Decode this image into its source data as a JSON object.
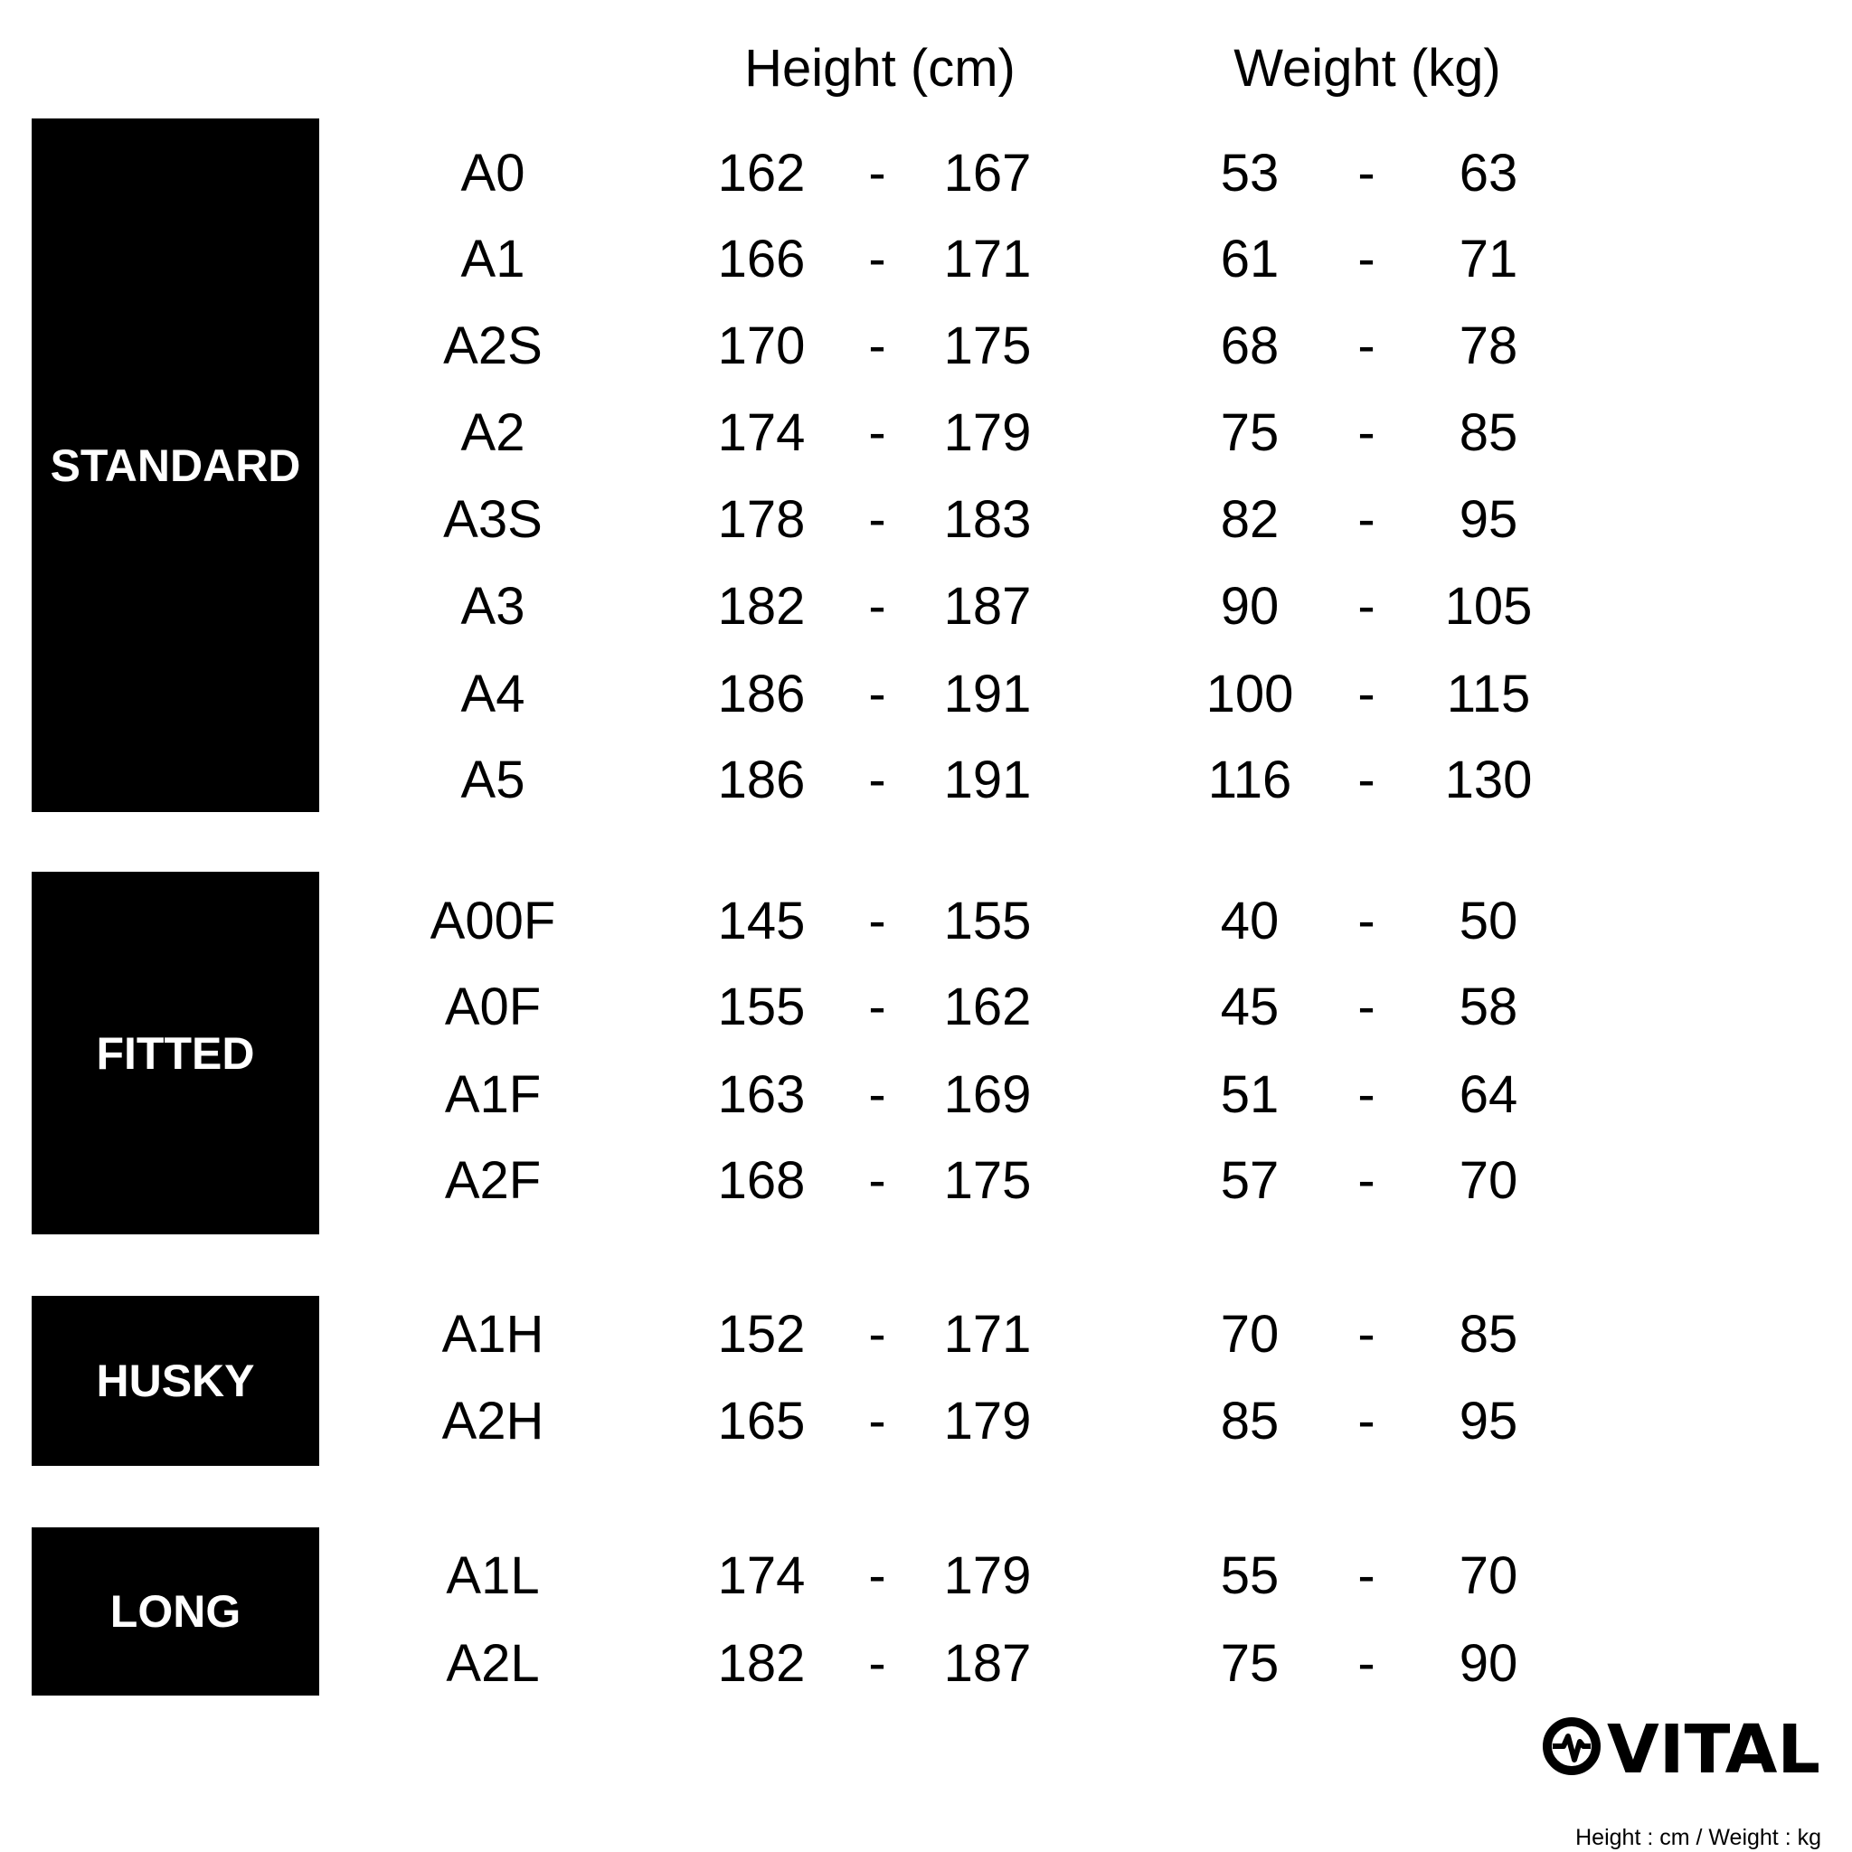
{
  "headers": {
    "height": "Height (cm)",
    "weight": "Weight (kg)"
  },
  "separator": "-",
  "groups": [
    {
      "label": "STANDARD",
      "rows": [
        {
          "size": "A0",
          "height_min": "162",
          "height_max": "167",
          "weight_min": "53",
          "weight_max": "63"
        },
        {
          "size": "A1",
          "height_min": "166",
          "height_max": "171",
          "weight_min": "61",
          "weight_max": "71"
        },
        {
          "size": "A2S",
          "height_min": "170",
          "height_max": "175",
          "weight_min": "68",
          "weight_max": "78"
        },
        {
          "size": "A2",
          "height_min": "174",
          "height_max": "179",
          "weight_min": "75",
          "weight_max": "85"
        },
        {
          "size": "A3S",
          "height_min": "178",
          "height_max": "183",
          "weight_min": "82",
          "weight_max": "95"
        },
        {
          "size": "A3",
          "height_min": "182",
          "height_max": "187",
          "weight_min": "90",
          "weight_max": "105"
        },
        {
          "size": "A4",
          "height_min": "186",
          "height_max": "191",
          "weight_min": "100",
          "weight_max": "115"
        },
        {
          "size": "A5",
          "height_min": "186",
          "height_max": "191",
          "weight_min": "116",
          "weight_max": "130"
        }
      ]
    },
    {
      "label": "FITTED",
      "rows": [
        {
          "size": "A00F",
          "height_min": "145",
          "height_max": "155",
          "weight_min": "40",
          "weight_max": "50"
        },
        {
          "size": "A0F",
          "height_min": "155",
          "height_max": "162",
          "weight_min": "45",
          "weight_max": "58"
        },
        {
          "size": "A1F",
          "height_min": "163",
          "height_max": "169",
          "weight_min": "51",
          "weight_max": "64"
        },
        {
          "size": "A2F",
          "height_min": "168",
          "height_max": "175",
          "weight_min": "57",
          "weight_max": "70"
        }
      ]
    },
    {
      "label": "HUSKY",
      "rows": [
        {
          "size": "A1H",
          "height_min": "152",
          "height_max": "171",
          "weight_min": "70",
          "weight_max": "85"
        },
        {
          "size": "A2H",
          "height_min": "165",
          "height_max": "179",
          "weight_min": "85",
          "weight_max": "95"
        }
      ]
    },
    {
      "label": "LONG",
      "rows": [
        {
          "size": "A1L",
          "height_min": "174",
          "height_max": "179",
          "weight_min": "55",
          "weight_max": "70"
        },
        {
          "size": "A2L",
          "height_min": "182",
          "height_max": "187",
          "weight_min": "75",
          "weight_max": "90"
        }
      ]
    }
  ],
  "brand": {
    "logo_text": "VITAL",
    "caption": "Height : cm / Weight : kg"
  }
}
